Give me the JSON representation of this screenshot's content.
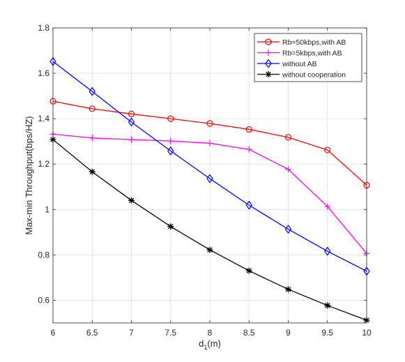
{
  "chart_data": {
    "type": "line",
    "xlabel": "d",
    "xlabel_sub": "1",
    "xlabel_unit": "(m)",
    "ylabel": "Max-min Throughput(bps/HZ)",
    "xlim": [
      6,
      10
    ],
    "ylim": [
      0.5,
      1.8
    ],
    "xticks": [
      6,
      6.5,
      7,
      7.5,
      8,
      8.5,
      9,
      9.5,
      10
    ],
    "xtick_labels": [
      "6",
      "6.5",
      "7",
      "7.5",
      "8",
      "8.5",
      "9",
      "9.5",
      "10"
    ],
    "yticks": [
      0.6,
      0.8,
      1,
      1.2,
      1.4,
      1.6,
      1.8
    ],
    "ytick_labels": [
      "0.6",
      "0.8",
      "1",
      "1.2",
      "1.4",
      "1.6",
      "1.8"
    ],
    "grid": true,
    "legend_position": "top-right",
    "x": [
      6,
      6.5,
      7,
      7.5,
      8,
      8.5,
      9,
      9.5,
      10
    ],
    "series": [
      {
        "name": "Rb=50kbps,with AB",
        "color": "#ff0000",
        "marker": "circle",
        "values": [
          1.477,
          1.444,
          1.421,
          1.4,
          1.379,
          1.353,
          1.318,
          1.262,
          1.107
        ]
      },
      {
        "name": "Rb=5kbps,with AB",
        "color": "#ff00ff",
        "marker": "plus",
        "values": [
          1.332,
          1.315,
          1.308,
          1.302,
          1.292,
          1.265,
          1.177,
          1.013,
          0.806
        ]
      },
      {
        "name": "without AB",
        "color": "#0000ff",
        "marker": "diamond",
        "values": [
          1.652,
          1.52,
          1.385,
          1.258,
          1.136,
          1.019,
          0.913,
          0.816,
          0.728
        ]
      },
      {
        "name": "without cooperation",
        "color": "#000000",
        "marker": "asterisk",
        "values": [
          1.308,
          1.166,
          1.04,
          0.925,
          0.822,
          0.73,
          0.648,
          0.577,
          0.512
        ]
      }
    ]
  }
}
